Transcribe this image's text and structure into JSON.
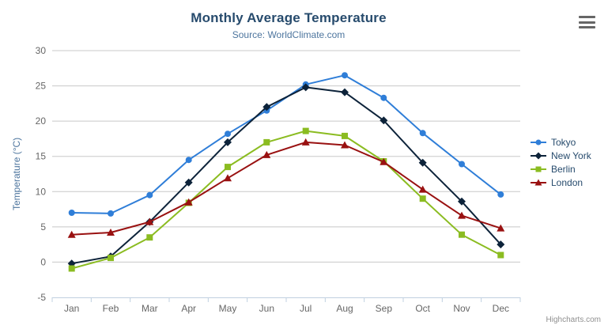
{
  "credits": "Highcharts.com",
  "icons": {
    "export_menu": "hamburger-icon"
  },
  "colors": {
    "title": "#274b6d",
    "subtitle": "#4d759e",
    "axis_title": "#4d759e",
    "axis_labels": "#666666",
    "gridline": "#c8c8c8",
    "axis_line": "#c0d0e0",
    "legend_text": "#274b6d",
    "credits_text": "#909090"
  },
  "chart_data": {
    "type": "line",
    "title": "Monthly Average Temperature",
    "subtitle": "Source: WorldClimate.com",
    "xlabel": "",
    "ylabel": "Temperature (°C)",
    "ylim": [
      -5,
      30
    ],
    "ytick_step": 5,
    "grid": true,
    "legend_position": "right",
    "categories": [
      "Jan",
      "Feb",
      "Mar",
      "Apr",
      "May",
      "Jun",
      "Jul",
      "Aug",
      "Sep",
      "Oct",
      "Nov",
      "Dec"
    ],
    "series": [
      {
        "name": "Tokyo",
        "color": "#2f7ed8",
        "marker": "circle",
        "values": [
          7.0,
          6.9,
          9.5,
          14.5,
          18.2,
          21.5,
          25.2,
          26.5,
          23.3,
          18.3,
          13.9,
          9.6
        ]
      },
      {
        "name": "New York",
        "color": "#0d233a",
        "marker": "diamond",
        "values": [
          -0.2,
          0.8,
          5.7,
          11.3,
          17.0,
          22.0,
          24.8,
          24.1,
          20.1,
          14.1,
          8.6,
          2.5
        ]
      },
      {
        "name": "Berlin",
        "color": "#8bbc21",
        "marker": "square",
        "values": [
          -0.9,
          0.6,
          3.5,
          8.4,
          13.5,
          17.0,
          18.6,
          17.9,
          14.3,
          9.0,
          3.9,
          1.0
        ]
      },
      {
        "name": "London",
        "color": "#991111",
        "marker": "triangle",
        "values": [
          3.9,
          4.2,
          5.7,
          8.5,
          11.9,
          15.2,
          17.0,
          16.6,
          14.2,
          10.3,
          6.6,
          4.8
        ]
      }
    ]
  }
}
